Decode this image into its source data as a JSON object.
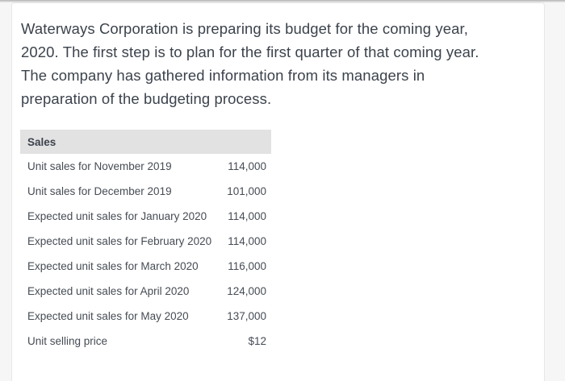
{
  "colors": {
    "page_background": "#f6f6f7",
    "card_background": "#ffffff",
    "card_border": "#e7e7e7",
    "top_strip": "#b2b2b2",
    "body_text": "#3c434c",
    "table_text": "#464c54",
    "table_header_background": "#e2e2e2"
  },
  "intro": {
    "text": "Waterways Corporation is preparing its budget for the coming year, 2020. The first step is to plan for the first quarter of that coming year. The company has gathered information from its managers in preparation of the budgeting process.",
    "lines": [
      "Waterways Corporation is preparing its budget for the coming year,",
      "2020. The first step is to plan for the first quarter of that coming year.",
      "The company has gathered information from its managers in",
      "preparation of the budgeting process."
    ]
  },
  "sales_table": {
    "header": "Sales",
    "rows": [
      {
        "label": "Unit sales for November 2019",
        "value": "114,000"
      },
      {
        "label": "Unit sales for December 2019",
        "value": "101,000"
      },
      {
        "label": "Expected unit sales for January 2020",
        "value": "114,000"
      },
      {
        "label": "Expected unit sales for February 2020",
        "value": "114,000"
      },
      {
        "label": "Expected unit sales for March 2020",
        "value": "116,000"
      },
      {
        "label": "Expected unit sales for April 2020",
        "value": "124,000"
      },
      {
        "label": "Expected unit sales for May 2020",
        "value": "137,000"
      },
      {
        "label": "Unit selling price",
        "value": "$12"
      }
    ]
  }
}
